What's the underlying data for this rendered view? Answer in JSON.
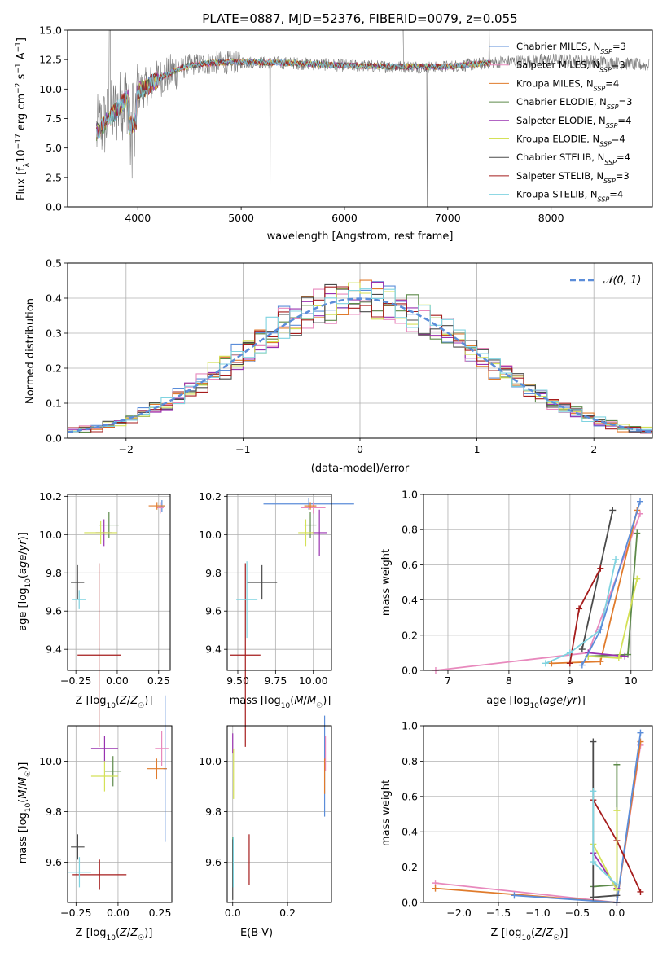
{
  "chart_data": [
    {
      "type": "line",
      "title": "PLATE=0887, MJD=52376, FIBERID=0079, z=0.055",
      "xlabel": "wavelength [Angstrom, rest frame]",
      "ylabel": "Flux [f_λ 10^-17 erg cm^-2 s^-1 A^-1]",
      "xlim": [
        3320,
        8980
      ],
      "ylim": [
        0,
        15
      ],
      "xticks": [
        4000,
        5000,
        6000,
        7000,
        8000
      ],
      "yticks": [
        "0.0",
        "2.5",
        "5.0",
        "7.5",
        "10.0",
        "12.5",
        "15.0"
      ],
      "legend_position": "top-right",
      "data_color": "#777777",
      "series": [
        {
          "name": "Chabrier MILES, N_SSP=3",
          "color": "#5b8dd9"
        },
        {
          "name": "Salpeter MILES, N_SSP=3",
          "color": "#e889bd"
        },
        {
          "name": "Kroupa MILES, N_SSP=4",
          "color": "#e07b2c"
        },
        {
          "name": "Chabrier ELODIE, N_SSP=3",
          "color": "#5d8a4a"
        },
        {
          "name": "Salpeter ELODIE, N_SSP=4",
          "color": "#9932b0"
        },
        {
          "name": "Kroupa ELODIE, N_SSP=4",
          "color": "#d4e157"
        },
        {
          "name": "Chabrier STELIB, N_SSP=4",
          "color": "#4a4a4a"
        },
        {
          "name": "Salpeter STELIB, N_SSP=3",
          "color": "#a51c1c"
        },
        {
          "name": "Kroupa STELIB, N_SSP=4",
          "color": "#7fd3e0"
        }
      ],
      "continuum": {
        "x": [
          3600,
          3700,
          3800,
          3900,
          4000,
          4100,
          4200,
          4300,
          4400,
          4500,
          4700,
          5000,
          5500,
          6000,
          6500,
          7000,
          7500,
          8000,
          8500,
          8950
        ],
        "y": [
          6.3,
          7.3,
          8.3,
          9.3,
          9.8,
          10.3,
          10.9,
          11.3,
          11.7,
          12.0,
          12.2,
          12.3,
          12.2,
          12.0,
          11.9,
          11.9,
          12.3,
          12.5,
          12.3,
          12.0
        ]
      }
    },
    {
      "type": "histogram",
      "xlabel": "(data-model)/error",
      "ylabel": "Normed distribution",
      "xlim": [
        -2.5,
        2.5
      ],
      "ylim": [
        0,
        0.5
      ],
      "xticks": [
        "−2",
        "−1",
        "0",
        "1",
        "2"
      ],
      "yticks": [
        "0.0",
        "0.1",
        "0.2",
        "0.3",
        "0.4",
        "0.5"
      ],
      "reference_curve": "𝒩(0, 1)",
      "reference_color": "#5b8dd9",
      "bin_edges_start": -2.5,
      "bin_width": 0.1
    },
    {
      "type": "errorbar",
      "xlabel": "Z [log10(Z/Z☉)]",
      "ylabel": "age  [log10(age/yr)]",
      "xlim": [
        -0.3,
        0.32
      ],
      "ylim": [
        9.29,
        10.21
      ],
      "xticks": [
        "−0.25",
        "0.00",
        "0.25"
      ],
      "yticks": [
        "9.4",
        "9.6",
        "9.8",
        "10.0",
        "10.2"
      ],
      "points": [
        {
          "x": 0.27,
          "xerr": 0.02,
          "y": 10.15,
          "yerr": 0.03,
          "color": "#5b8dd9"
        },
        {
          "x": 0.26,
          "xerr": 0.02,
          "y": 10.14,
          "yerr": 0.03,
          "color": "#e889bd"
        },
        {
          "x": 0.24,
          "xerr": 0.05,
          "y": 10.15,
          "yerr": 0.02,
          "color": "#e07b2c"
        },
        {
          "x": -0.05,
          "xerr": 0.06,
          "y": 10.05,
          "yerr": 0.07,
          "color": "#5d8a4a"
        },
        {
          "x": -0.08,
          "xerr": 0.05,
          "y": 10.01,
          "yerr": 0.07,
          "color": "#9932b0"
        },
        {
          "x": -0.1,
          "xerr": 0.1,
          "y": 10.01,
          "yerr": 0.06,
          "color": "#d4e157"
        },
        {
          "x": -0.24,
          "xerr": 0.04,
          "y": 9.75,
          "yerr": 0.09,
          "color": "#4a4a4a"
        },
        {
          "x": -0.11,
          "xerr": 0.13,
          "y": 9.37,
          "yerr": 0.48,
          "color": "#a51c1c"
        },
        {
          "x": -0.23,
          "xerr": 0.04,
          "y": 9.66,
          "yerr": 0.05,
          "color": "#7fd3e0"
        }
      ]
    },
    {
      "type": "errorbar",
      "xlabel": "mass [log10(M/M☉)]",
      "ylabel": "",
      "xlim": [
        9.43,
        10.12
      ],
      "ylim": [
        9.29,
        10.21
      ],
      "xticks": [
        "9.50",
        "9.75",
        "10.00"
      ],
      "yticks": [
        "9.4",
        "9.6",
        "9.8",
        "10.0",
        "10.2"
      ],
      "points": [
        {
          "x": 9.97,
          "xerr": 0.3,
          "y": 10.16,
          "yerr": 0.03,
          "color": "#5b8dd9"
        },
        {
          "x": 10.0,
          "xerr": 0.08,
          "y": 10.14,
          "yerr": 0.03,
          "color": "#e889bd"
        },
        {
          "x": 9.98,
          "xerr": 0.04,
          "y": 10.15,
          "yerr": 0.02,
          "color": "#e07b2c"
        },
        {
          "x": 9.98,
          "xerr": 0.04,
          "y": 10.05,
          "yerr": 0.07,
          "color": "#5d8a4a"
        },
        {
          "x": 10.04,
          "xerr": 0.05,
          "y": 10.01,
          "yerr": 0.12,
          "color": "#9932b0"
        },
        {
          "x": 9.95,
          "xerr": 0.05,
          "y": 10.01,
          "yerr": 0.07,
          "color": "#d4e157"
        },
        {
          "x": 9.66,
          "xerr": 0.1,
          "y": 9.75,
          "yerr": 0.09,
          "color": "#4a4a4a"
        },
        {
          "x": 9.55,
          "xerr": 0.1,
          "y": 9.37,
          "yerr": 0.48,
          "color": "#a51c1c"
        },
        {
          "x": 9.56,
          "xerr": 0.07,
          "y": 9.66,
          "yerr": 0.2,
          "color": "#7fd3e0"
        }
      ]
    },
    {
      "type": "line",
      "xlabel": "age  [log10(age/yr)]",
      "ylabel": "mass weight",
      "xlim": [
        6.6,
        10.35
      ],
      "ylim": [
        0,
        1
      ],
      "xticks": [
        "7",
        "8",
        "9",
        "10"
      ],
      "yticks": [
        "0.0",
        "0.2",
        "0.4",
        "0.6",
        "0.8",
        "1.0"
      ],
      "series": [
        {
          "color": "#e889bd",
          "x": [
            6.8,
            9.3,
            10.15
          ],
          "y": [
            0.0,
            0.1,
            0.89
          ]
        },
        {
          "color": "#e07b2c",
          "x": [
            8.7,
            9.5,
            10.1
          ],
          "y": [
            0.04,
            0.05,
            0.91
          ]
        },
        {
          "color": "#5d8a4a",
          "x": [
            9.3,
            9.95,
            10.1
          ],
          "y": [
            0.08,
            0.09,
            0.78
          ]
        },
        {
          "color": "#9932b0",
          "x": [
            9.3,
            9.9
          ],
          "y": [
            0.1,
            0.08
          ]
        },
        {
          "color": "#d4e157",
          "x": [
            9.3,
            9.8,
            10.1
          ],
          "y": [
            0.08,
            0.07,
            0.52
          ]
        },
        {
          "color": "#4a4a4a",
          "x": [
            9.2,
            9.7
          ],
          "y": [
            0.12,
            0.91
          ]
        },
        {
          "color": "#a51c1c",
          "x": [
            9.0,
            9.15,
            9.5
          ],
          "y": [
            0.04,
            0.35,
            0.58
          ]
        },
        {
          "color": "#7fd3e0",
          "x": [
            8.6,
            9.0,
            9.5,
            9.75
          ],
          "y": [
            0.04,
            0.1,
            0.23,
            0.63
          ]
        },
        {
          "color": "#5b8dd9",
          "x": [
            9.2,
            9.5,
            10.15
          ],
          "y": [
            0.03,
            0.23,
            0.96
          ]
        }
      ]
    },
    {
      "type": "errorbar",
      "xlabel": "Z [log10(Z/Z☉)]",
      "ylabel": "mass [log10(M/M☉)]",
      "xlim": [
        -0.3,
        0.32
      ],
      "ylim": [
        9.44,
        10.14
      ],
      "xticks": [
        "−0.25",
        "0.00",
        "0.25"
      ],
      "yticks": [
        "9.6",
        "9.8",
        "10.0"
      ],
      "points": [
        {
          "x": 0.28,
          "xerr": 0.01,
          "y": 9.97,
          "yerr": 0.29,
          "color": "#5b8dd9"
        },
        {
          "x": 0.26,
          "xerr": 0.04,
          "y": 10.05,
          "yerr": 0.07,
          "color": "#e889bd"
        },
        {
          "x": 0.23,
          "xerr": 0.06,
          "y": 9.97,
          "yerr": 0.04,
          "color": "#e07b2c"
        },
        {
          "x": -0.03,
          "xerr": 0.05,
          "y": 9.96,
          "yerr": 0.06,
          "color": "#5d8a4a"
        },
        {
          "x": -0.08,
          "xerr": 0.08,
          "y": 10.05,
          "yerr": 0.05,
          "color": "#9932b0"
        },
        {
          "x": -0.08,
          "xerr": 0.08,
          "y": 9.94,
          "yerr": 0.06,
          "color": "#d4e157"
        },
        {
          "x": -0.24,
          "xerr": 0.04,
          "y": 9.66,
          "yerr": 0.05,
          "color": "#4a4a4a"
        },
        {
          "x": -0.11,
          "xerr": 0.16,
          "y": 9.55,
          "yerr": 0.06,
          "color": "#a51c1c"
        },
        {
          "x": -0.23,
          "xerr": 0.07,
          "y": 9.56,
          "yerr": 0.06,
          "color": "#7fd3e0"
        }
      ]
    },
    {
      "type": "errorbar",
      "xlabel": "E(B-V)",
      "ylabel": "",
      "xlim": [
        -0.02,
        0.36
      ],
      "ylim": [
        9.44,
        10.14
      ],
      "xticks": [
        "0.0",
        "0.2"
      ],
      "yticks": [
        "9.6",
        "9.8",
        "10.0"
      ],
      "points": [
        {
          "x": 0.335,
          "y": 9.98,
          "yerr": 0.2,
          "color": "#5b8dd9"
        },
        {
          "x": 0.338,
          "y": 10.03,
          "yerr": 0.07,
          "color": "#e889bd"
        },
        {
          "x": 0.335,
          "y": 9.94,
          "yerr": 0.07,
          "color": "#e07b2c"
        },
        {
          "x": 0.0,
          "y": 9.6,
          "yerr": 0.1,
          "color": "#5d8a4a"
        },
        {
          "x": 0.0,
          "y": 10.07,
          "yerr": 0.04,
          "color": "#9932b0"
        },
        {
          "x": 0.003,
          "y": 9.95,
          "yerr": 0.1,
          "color": "#d4e157"
        },
        {
          "x": 0.0,
          "y": 9.57,
          "yerr": 0.12,
          "color": "#4a4a4a"
        },
        {
          "x": 0.06,
          "y": 9.61,
          "yerr": 0.1,
          "color": "#a51c1c"
        },
        {
          "x": 0.002,
          "y": 9.6,
          "yerr": 0.1,
          "color": "#7fd3e0"
        }
      ]
    },
    {
      "type": "line",
      "xlabel": "Z [log10(Z/Z☉)]",
      "ylabel": "mass weight",
      "xlim": [
        -2.45,
        0.45
      ],
      "ylim": [
        0,
        1
      ],
      "xticks": [
        "−2.0",
        "−1.5",
        "−1.0",
        "−0.5",
        "0.0"
      ],
      "yticks": [
        "0.0",
        "0.2",
        "0.4",
        "0.6",
        "0.8",
        "1.0"
      ],
      "series": [
        {
          "color": "#e889bd",
          "x": [
            -2.3,
            0.0,
            0.3
          ],
          "y": [
            0.11,
            0.0,
            0.89
          ]
        },
        {
          "color": "#e07b2c",
          "x": [
            -2.3,
            0.0,
            0.3
          ],
          "y": [
            0.08,
            0.0,
            0.91
          ]
        },
        {
          "color": "#5b8dd9",
          "x": [
            -1.3,
            0.0,
            0.3
          ],
          "y": [
            0.04,
            0.0,
            0.96
          ]
        },
        {
          "color": "#5d8a4a",
          "x": [
            -0.3,
            0.0,
            0.0
          ],
          "y": [
            0.09,
            0.1,
            0.78
          ]
        },
        {
          "color": "#4a4a4a",
          "x": [
            -0.3,
            -0.3,
            0.0
          ],
          "y": [
            0.91,
            0.03,
            0.04
          ]
        },
        {
          "color": "#a51c1c",
          "x": [
            -0.3,
            0.0,
            0.3
          ],
          "y": [
            0.58,
            0.35,
            0.06
          ]
        },
        {
          "color": "#9932b0",
          "x": [
            -0.3,
            0.0
          ],
          "y": [
            0.28,
            0.08
          ]
        },
        {
          "color": "#d4e157",
          "x": [
            -0.3,
            0.0,
            0.0
          ],
          "y": [
            0.33,
            0.07,
            0.52
          ]
        },
        {
          "color": "#7fd3e0",
          "x": [
            -0.3,
            -0.3,
            0.0
          ],
          "y": [
            0.63,
            0.23,
            0.1
          ]
        }
      ]
    }
  ]
}
